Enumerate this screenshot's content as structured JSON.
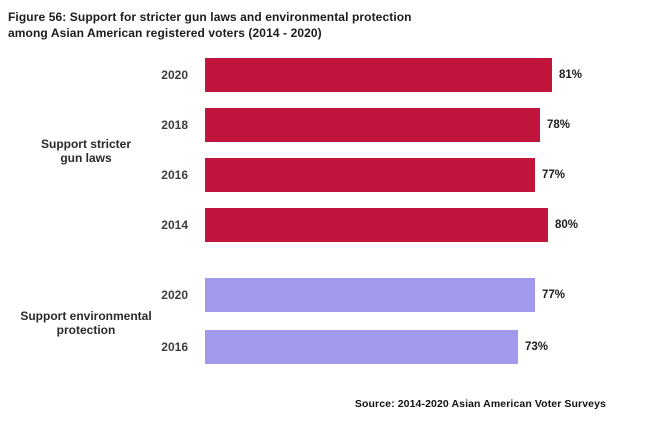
{
  "title": {
    "line1": "Figure 56: Support for stricter gun laws and environmental protection",
    "line2": "among Asian American registered voters (2014 - 2020)"
  },
  "source": "Source: 2014-2020 Asian American Voter Surveys",
  "colors": {
    "gun_laws_bar": "#c0153c",
    "environment_bar": "#a299ec",
    "title_text": "#1c1c1c",
    "year_label_text": "#3d3d3d",
    "background": "#ffffff"
  },
  "chart_data": {
    "type": "bar",
    "orientation": "horizontal",
    "title": "Figure 56: Support for stricter gun laws and environmental protection among Asian American registered voters (2014 - 2020)",
    "source": "Source: 2014-2020 Asian American Voter Surveys",
    "value_suffix": "%",
    "xlim": [
      0,
      100
    ],
    "grid": false,
    "legend": false,
    "groups": [
      {
        "label_lines": [
          "Support stricter",
          "gun laws"
        ],
        "color": "#c0153c",
        "bars": [
          {
            "year": "2020",
            "value": 81
          },
          {
            "year": "2018",
            "value": 78
          },
          {
            "year": "2016",
            "value": 77
          },
          {
            "year": "2014",
            "value": 80
          }
        ]
      },
      {
        "label_lines": [
          "Support environmental",
          "protection"
        ],
        "color": "#a299ec",
        "bars": [
          {
            "year": "2020",
            "value": 77
          },
          {
            "year": "2016",
            "value": 73
          }
        ]
      }
    ]
  }
}
